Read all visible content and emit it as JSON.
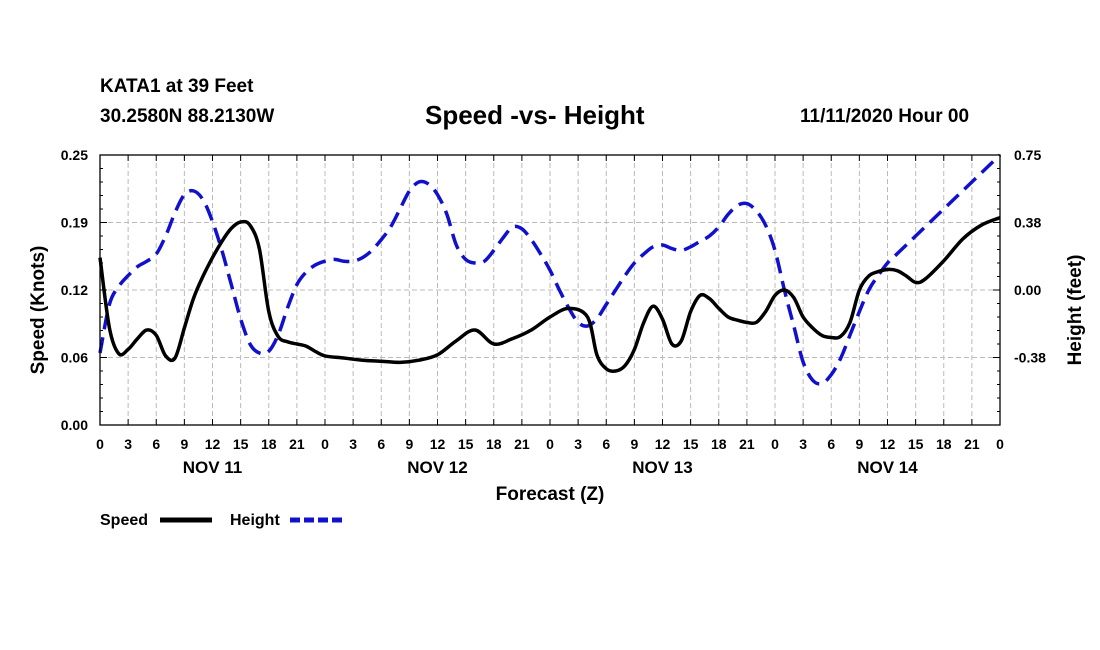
{
  "header": {
    "station": "KATA1 at 39 Feet",
    "coords": "30.2580N 88.2130W",
    "title": "Speed -vs- Height",
    "datestamp": "11/11/2020 Hour 00"
  },
  "chart_data": {
    "type": "line",
    "title": "Speed -vs- Height",
    "xlabel": "Forecast (Z)",
    "ylabel": "Speed (Knots)",
    "y2label": "Height (feet)",
    "xlim": [
      0,
      96
    ],
    "ylim": [
      0,
      0.25
    ],
    "y2lim": [
      -0.75,
      0.75
    ],
    "grid": true,
    "x_tick_labels": [
      "0",
      "3",
      "6",
      "9",
      "12",
      "15",
      "18",
      "21",
      "0",
      "3",
      "6",
      "9",
      "12",
      "15",
      "18",
      "21",
      "0",
      "3",
      "6",
      "9",
      "12",
      "15",
      "18",
      "21",
      "0",
      "3",
      "6",
      "9",
      "12",
      "15",
      "18",
      "21",
      "0"
    ],
    "date_labels": [
      {
        "label": "NOV 11",
        "hour": 12
      },
      {
        "label": "NOV 12",
        "hour": 36
      },
      {
        "label": "NOV 13",
        "hour": 60
      },
      {
        "label": "NOV 14",
        "hour": 84
      }
    ],
    "y_tick_labels": [
      "0.00",
      "0.06",
      "0.12",
      "0.19",
      "0.25"
    ],
    "y_tick_values": [
      0,
      0.0625,
      0.125,
      0.1875,
      0.25
    ],
    "y2_tick_labels": [
      "-0.38",
      "0.00",
      "0.38",
      "0.75"
    ],
    "y2_tick_values": [
      -0.375,
      0,
      0.375,
      0.75
    ],
    "series": [
      {
        "name": "Speed",
        "axis": "left",
        "color": "#000000",
        "dash": false,
        "x": [
          0,
          1,
          2,
          3,
          4,
          5,
          6,
          7,
          8,
          9,
          10,
          11,
          12,
          13,
          14,
          15,
          16,
          17,
          18,
          19,
          20,
          21,
          22,
          23,
          24,
          26,
          28,
          30,
          32,
          34,
          36,
          38,
          40,
          42,
          44,
          46,
          48,
          50,
          52,
          53,
          54,
          55,
          56,
          57,
          58,
          59,
          60,
          61,
          62,
          63,
          64,
          65,
          66,
          67,
          68,
          69,
          70,
          71,
          72,
          73,
          74,
          75,
          76,
          77,
          78,
          79,
          80,
          81,
          82,
          83,
          84,
          85,
          86,
          87,
          88,
          90,
          92,
          94,
          96
        ],
        "values": [
          0.155,
          0.09,
          0.066,
          0.07,
          0.08,
          0.088,
          0.083,
          0.064,
          0.062,
          0.09,
          0.118,
          0.138,
          0.155,
          0.17,
          0.182,
          0.188,
          0.185,
          0.163,
          0.105,
          0.082,
          0.077,
          0.075,
          0.073,
          0.068,
          0.064,
          0.062,
          0.06,
          0.059,
          0.058,
          0.06,
          0.065,
          0.078,
          0.088,
          0.075,
          0.08,
          0.088,
          0.1,
          0.108,
          0.1,
          0.065,
          0.052,
          0.05,
          0.055,
          0.07,
          0.095,
          0.11,
          0.098,
          0.075,
          0.078,
          0.105,
          0.12,
          0.117,
          0.108,
          0.1,
          0.097,
          0.095,
          0.095,
          0.105,
          0.12,
          0.125,
          0.118,
          0.1,
          0.09,
          0.083,
          0.081,
          0.082,
          0.095,
          0.125,
          0.138,
          0.142,
          0.144,
          0.143,
          0.138,
          0.132,
          0.135,
          0.152,
          0.172,
          0.185,
          0.192
        ]
      },
      {
        "name": "Height",
        "axis": "right",
        "color": "#1111cc",
        "dash": true,
        "x": [
          0,
          1,
          2,
          3,
          4,
          5,
          6,
          7,
          8,
          9,
          10,
          11,
          12,
          13,
          14,
          15,
          16,
          17,
          18,
          19,
          20,
          21,
          22,
          23,
          24,
          25,
          26,
          27,
          28,
          29,
          30,
          31,
          32,
          33,
          34,
          35,
          36,
          37,
          38,
          39,
          40,
          41,
          42,
          43,
          44,
          45,
          46,
          47,
          48,
          49,
          50,
          51,
          52,
          53,
          54,
          55,
          56,
          57,
          58,
          59,
          60,
          61,
          62,
          63,
          64,
          65,
          66,
          67,
          68,
          69,
          70,
          71,
          72,
          73,
          74,
          75,
          76,
          77,
          78,
          79,
          80,
          81,
          82,
          83,
          84,
          85,
          86,
          87,
          88,
          89,
          90,
          91,
          92,
          93,
          94,
          95,
          96
        ],
        "values": [
          -0.35,
          -0.08,
          0.02,
          0.08,
          0.13,
          0.16,
          0.2,
          0.3,
          0.43,
          0.53,
          0.55,
          0.5,
          0.38,
          0.22,
          0.03,
          -0.16,
          -0.3,
          -0.35,
          -0.34,
          -0.25,
          -0.1,
          0.03,
          0.1,
          0.14,
          0.16,
          0.17,
          0.16,
          0.16,
          0.18,
          0.22,
          0.28,
          0.35,
          0.45,
          0.55,
          0.6,
          0.59,
          0.53,
          0.42,
          0.25,
          0.17,
          0.15,
          0.16,
          0.22,
          0.29,
          0.35,
          0.34,
          0.28,
          0.2,
          0.11,
          0.0,
          -0.1,
          -0.18,
          -0.2,
          -0.16,
          -0.08,
          0.0,
          0.08,
          0.15,
          0.2,
          0.24,
          0.25,
          0.23,
          0.22,
          0.24,
          0.27,
          0.3,
          0.35,
          0.42,
          0.47,
          0.48,
          0.44,
          0.36,
          0.22,
          0.0,
          -0.2,
          -0.4,
          -0.5,
          -0.52,
          -0.47,
          -0.38,
          -0.25,
          -0.12,
          0.0,
          0.08,
          0.15,
          0.2,
          0.25,
          0.3,
          0.35,
          0.4,
          0.45,
          0.5,
          0.55,
          0.6,
          0.65,
          0.7,
          0.75
        ]
      }
    ],
    "legend": [
      {
        "label": "Speed",
        "color": "#000000",
        "dash": false
      },
      {
        "label": "Height",
        "color": "#1111cc",
        "dash": true
      }
    ],
    "legend_position": "bottom-left"
  }
}
